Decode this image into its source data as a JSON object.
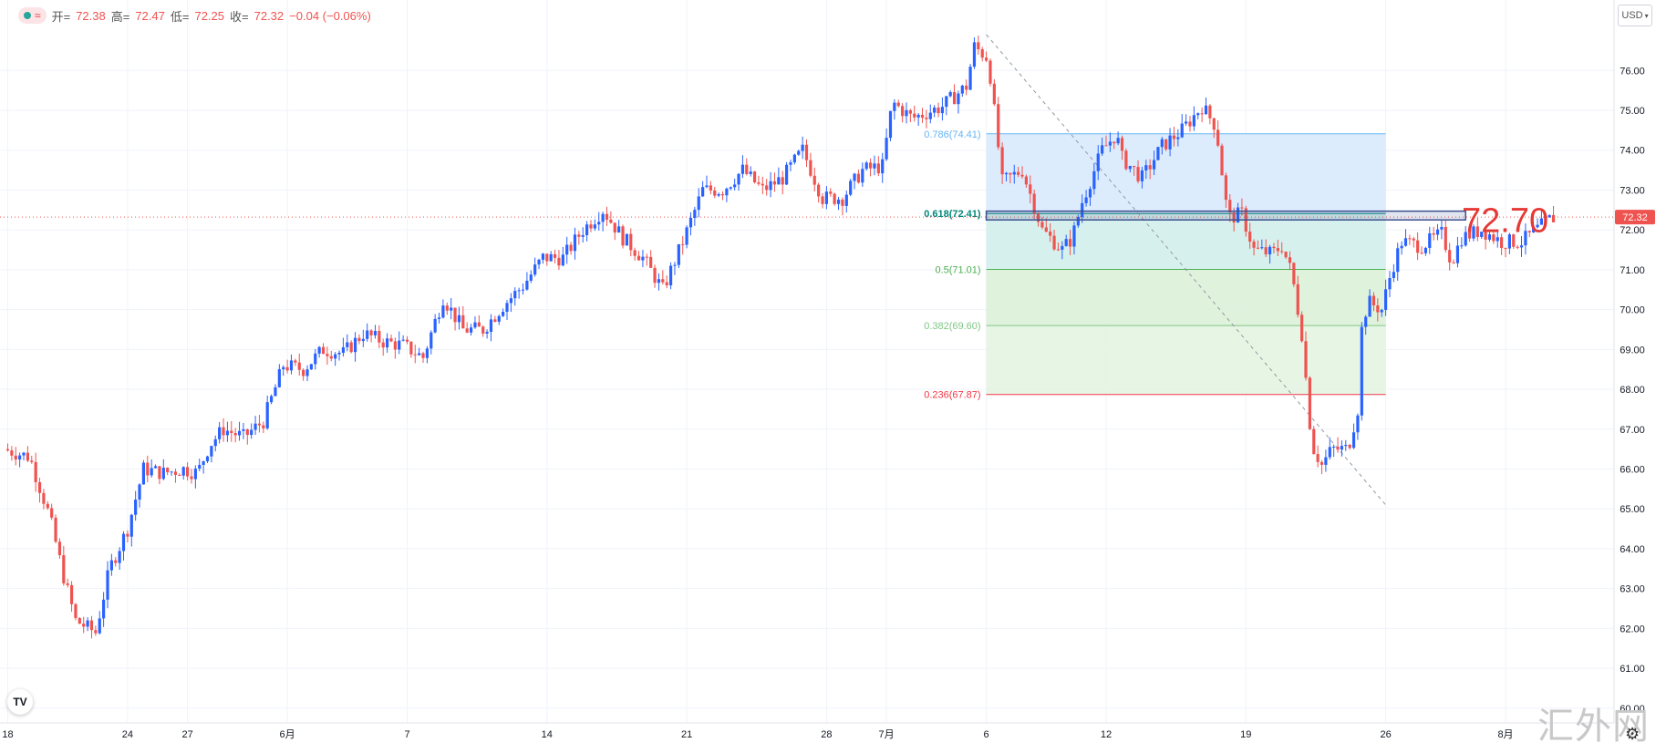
{
  "toolbar": {
    "ohlc": {
      "open_label": "开=",
      "open": "72.38",
      "high_label": "高=",
      "high": "72.47",
      "low_label": "低=",
      "low": "72.25",
      "close_label": "收=",
      "close": "72.32",
      "change": "−0.04 (−0.06%)"
    },
    "symbol_icon": "wave-icon",
    "currency_button": "USD"
  },
  "overlay_price_label": "72.70",
  "watermark": "汇外网",
  "logo": "TV",
  "colors": {
    "up": "#2962ff",
    "down": "#ef5350",
    "fib_0786": "#64b5f6",
    "fib_0618": "#00897b",
    "fib_05": "#4caf50",
    "fib_0382": "#81c784",
    "fib_0236": "#f23645",
    "highlight_box": "#3c4f8f",
    "overlay_label": "#e53935"
  },
  "chart_data": {
    "type": "candlestick",
    "title": "",
    "xlabel": "",
    "ylabel": "",
    "ylim": [
      59.6,
      77.5
    ],
    "y_ticks": [
      "60.00",
      "61.00",
      "62.00",
      "63.00",
      "64.00",
      "65.00",
      "66.00",
      "67.00",
      "68.00",
      "69.00",
      "70.00",
      "71.00",
      "72.00",
      "73.00",
      "74.00",
      "75.00",
      "76.00"
    ],
    "x_ticks": [
      {
        "label": "18",
        "day": 0
      },
      {
        "label": "24",
        "day": 6
      },
      {
        "label": "27",
        "day": 9
      },
      {
        "label": "6月",
        "day": 14
      },
      {
        "label": "7",
        "day": 20
      },
      {
        "label": "14",
        "day": 27
      },
      {
        "label": "21",
        "day": 34
      },
      {
        "label": "28",
        "day": 41
      },
      {
        "label": "7月",
        "day": 44
      },
      {
        "label": "6",
        "day": 49
      },
      {
        "label": "12",
        "day": 55
      },
      {
        "label": "19",
        "day": 62
      },
      {
        "label": "26",
        "day": 69
      },
      {
        "label": "8月",
        "day": 75
      }
    ],
    "current_price": 72.32,
    "current_price_label": "72.32",
    "grid": true,
    "fibonacci": {
      "levels": [
        {
          "label": "0.786(74.41)",
          "ratio": 0.786,
          "price": 74.41
        },
        {
          "label": "0.618(72.41)",
          "ratio": 0.618,
          "price": 72.41
        },
        {
          "label": "0.5(71.01)",
          "ratio": 0.5,
          "price": 71.01
        },
        {
          "label": "0.382(69.60)",
          "ratio": 0.382,
          "price": 69.6
        },
        {
          "label": "0.236(67.87)",
          "ratio": 0.236,
          "price": 67.87
        }
      ],
      "trend_start": {
        "day": 49,
        "price": 76.9
      },
      "trend_end": {
        "day": 69,
        "price": 65.1
      },
      "zone_start_day": 49,
      "zone_end_day": 69
    },
    "highlight_zone": {
      "price_low": 72.25,
      "price_high": 72.47,
      "start_day": 49,
      "end_day": 73
    },
    "anchors": [
      {
        "day": 0,
        "price": 66.5
      },
      {
        "day": 1.3,
        "price": 66.3
      },
      {
        "day": 2.3,
        "price": 64.8
      },
      {
        "day": 3.0,
        "price": 63.3
      },
      {
        "day": 3.6,
        "price": 62.2
      },
      {
        "day": 4.6,
        "price": 61.9
      },
      {
        "day": 5.3,
        "price": 63.5
      },
      {
        "day": 6.2,
        "price": 64.5
      },
      {
        "day": 7.0,
        "price": 66.0
      },
      {
        "day": 8.0,
        "price": 65.9
      },
      {
        "day": 9.0,
        "price": 66.0
      },
      {
        "day": 9.7,
        "price": 65.9
      },
      {
        "day": 10.3,
        "price": 66.6
      },
      {
        "day": 11.0,
        "price": 67.0
      },
      {
        "day": 12.0,
        "price": 66.8
      },
      {
        "day": 13.0,
        "price": 67.2
      },
      {
        "day": 14.0,
        "price": 68.6
      },
      {
        "day": 15.0,
        "price": 68.5
      },
      {
        "day": 16.0,
        "price": 69.0
      },
      {
        "day": 17.0,
        "price": 68.9
      },
      {
        "day": 18.0,
        "price": 69.4
      },
      {
        "day": 19.0,
        "price": 69.2
      },
      {
        "day": 20.0,
        "price": 69.1
      },
      {
        "day": 21.0,
        "price": 68.8
      },
      {
        "day": 22.0,
        "price": 70.3
      },
      {
        "day": 23.0,
        "price": 69.5
      },
      {
        "day": 24.0,
        "price": 69.5
      },
      {
        "day": 25.0,
        "price": 70.1
      },
      {
        "day": 26.0,
        "price": 70.6
      },
      {
        "day": 27.0,
        "price": 71.3
      },
      {
        "day": 28.0,
        "price": 71.3
      },
      {
        "day": 29.0,
        "price": 72.0
      },
      {
        "day": 30.0,
        "price": 72.5
      },
      {
        "day": 31.0,
        "price": 71.8
      },
      {
        "day": 32.0,
        "price": 71.3
      },
      {
        "day": 33.0,
        "price": 70.5
      },
      {
        "day": 34.0,
        "price": 71.7
      },
      {
        "day": 35.0,
        "price": 73.0
      },
      {
        "day": 36.0,
        "price": 73.0
      },
      {
        "day": 37.0,
        "price": 73.5
      },
      {
        "day": 38.0,
        "price": 73.0
      },
      {
        "day": 39.0,
        "price": 73.3
      },
      {
        "day": 40.0,
        "price": 74.0
      },
      {
        "day": 41.0,
        "price": 72.8
      },
      {
        "day": 42.0,
        "price": 72.8
      },
      {
        "day": 43.0,
        "price": 73.5
      },
      {
        "day": 44.0,
        "price": 73.6
      },
      {
        "day": 44.5,
        "price": 75.2
      },
      {
        "day": 45.5,
        "price": 74.8
      },
      {
        "day": 47.0,
        "price": 75.1
      },
      {
        "day": 48.2,
        "price": 75.6
      },
      {
        "day": 48.6,
        "price": 76.6
      },
      {
        "day": 49.3,
        "price": 76.3
      },
      {
        "day": 50.0,
        "price": 73.2
      },
      {
        "day": 51.0,
        "price": 73.5
      },
      {
        "day": 52.0,
        "price": 72.0
      },
      {
        "day": 53.0,
        "price": 71.5
      },
      {
        "day": 53.5,
        "price": 71.8
      },
      {
        "day": 54.0,
        "price": 72.7
      },
      {
        "day": 55.0,
        "price": 74.0
      },
      {
        "day": 55.7,
        "price": 74.4
      },
      {
        "day": 56.0,
        "price": 73.8
      },
      {
        "day": 57.0,
        "price": 73.3
      },
      {
        "day": 58.0,
        "price": 74.1
      },
      {
        "day": 59.0,
        "price": 74.5
      },
      {
        "day": 60.0,
        "price": 75.1
      },
      {
        "day": 60.7,
        "price": 74.6
      },
      {
        "day": 61.3,
        "price": 72.3
      },
      {
        "day": 62.0,
        "price": 72.4
      },
      {
        "day": 62.6,
        "price": 71.5
      },
      {
        "day": 63.5,
        "price": 71.4
      },
      {
        "day": 64.0,
        "price": 71.6
      },
      {
        "day": 64.5,
        "price": 70.9
      },
      {
        "day": 65.0,
        "price": 69.4
      },
      {
        "day": 65.5,
        "price": 66.6
      },
      {
        "day": 66.0,
        "price": 66.1
      },
      {
        "day": 66.5,
        "price": 66.5
      },
      {
        "day": 67.3,
        "price": 66.5
      },
      {
        "day": 67.8,
        "price": 67.5
      },
      {
        "day": 68.0,
        "price": 69.5
      },
      {
        "day": 68.3,
        "price": 70.2
      },
      {
        "day": 69.0,
        "price": 70.0
      },
      {
        "day": 69.5,
        "price": 71.0
      },
      {
        "day": 70.0,
        "price": 71.7
      },
      {
        "day": 71.0,
        "price": 71.6
      },
      {
        "day": 72.0,
        "price": 71.9
      },
      {
        "day": 72.5,
        "price": 71.2
      },
      {
        "day": 73.0,
        "price": 71.8
      },
      {
        "day": 74.0,
        "price": 72.0
      },
      {
        "day": 75.0,
        "price": 71.7
      },
      {
        "day": 76.0,
        "price": 71.7
      },
      {
        "day": 77.0,
        "price": 72.1
      },
      {
        "day": 77.5,
        "price": 72.3
      }
    ]
  }
}
